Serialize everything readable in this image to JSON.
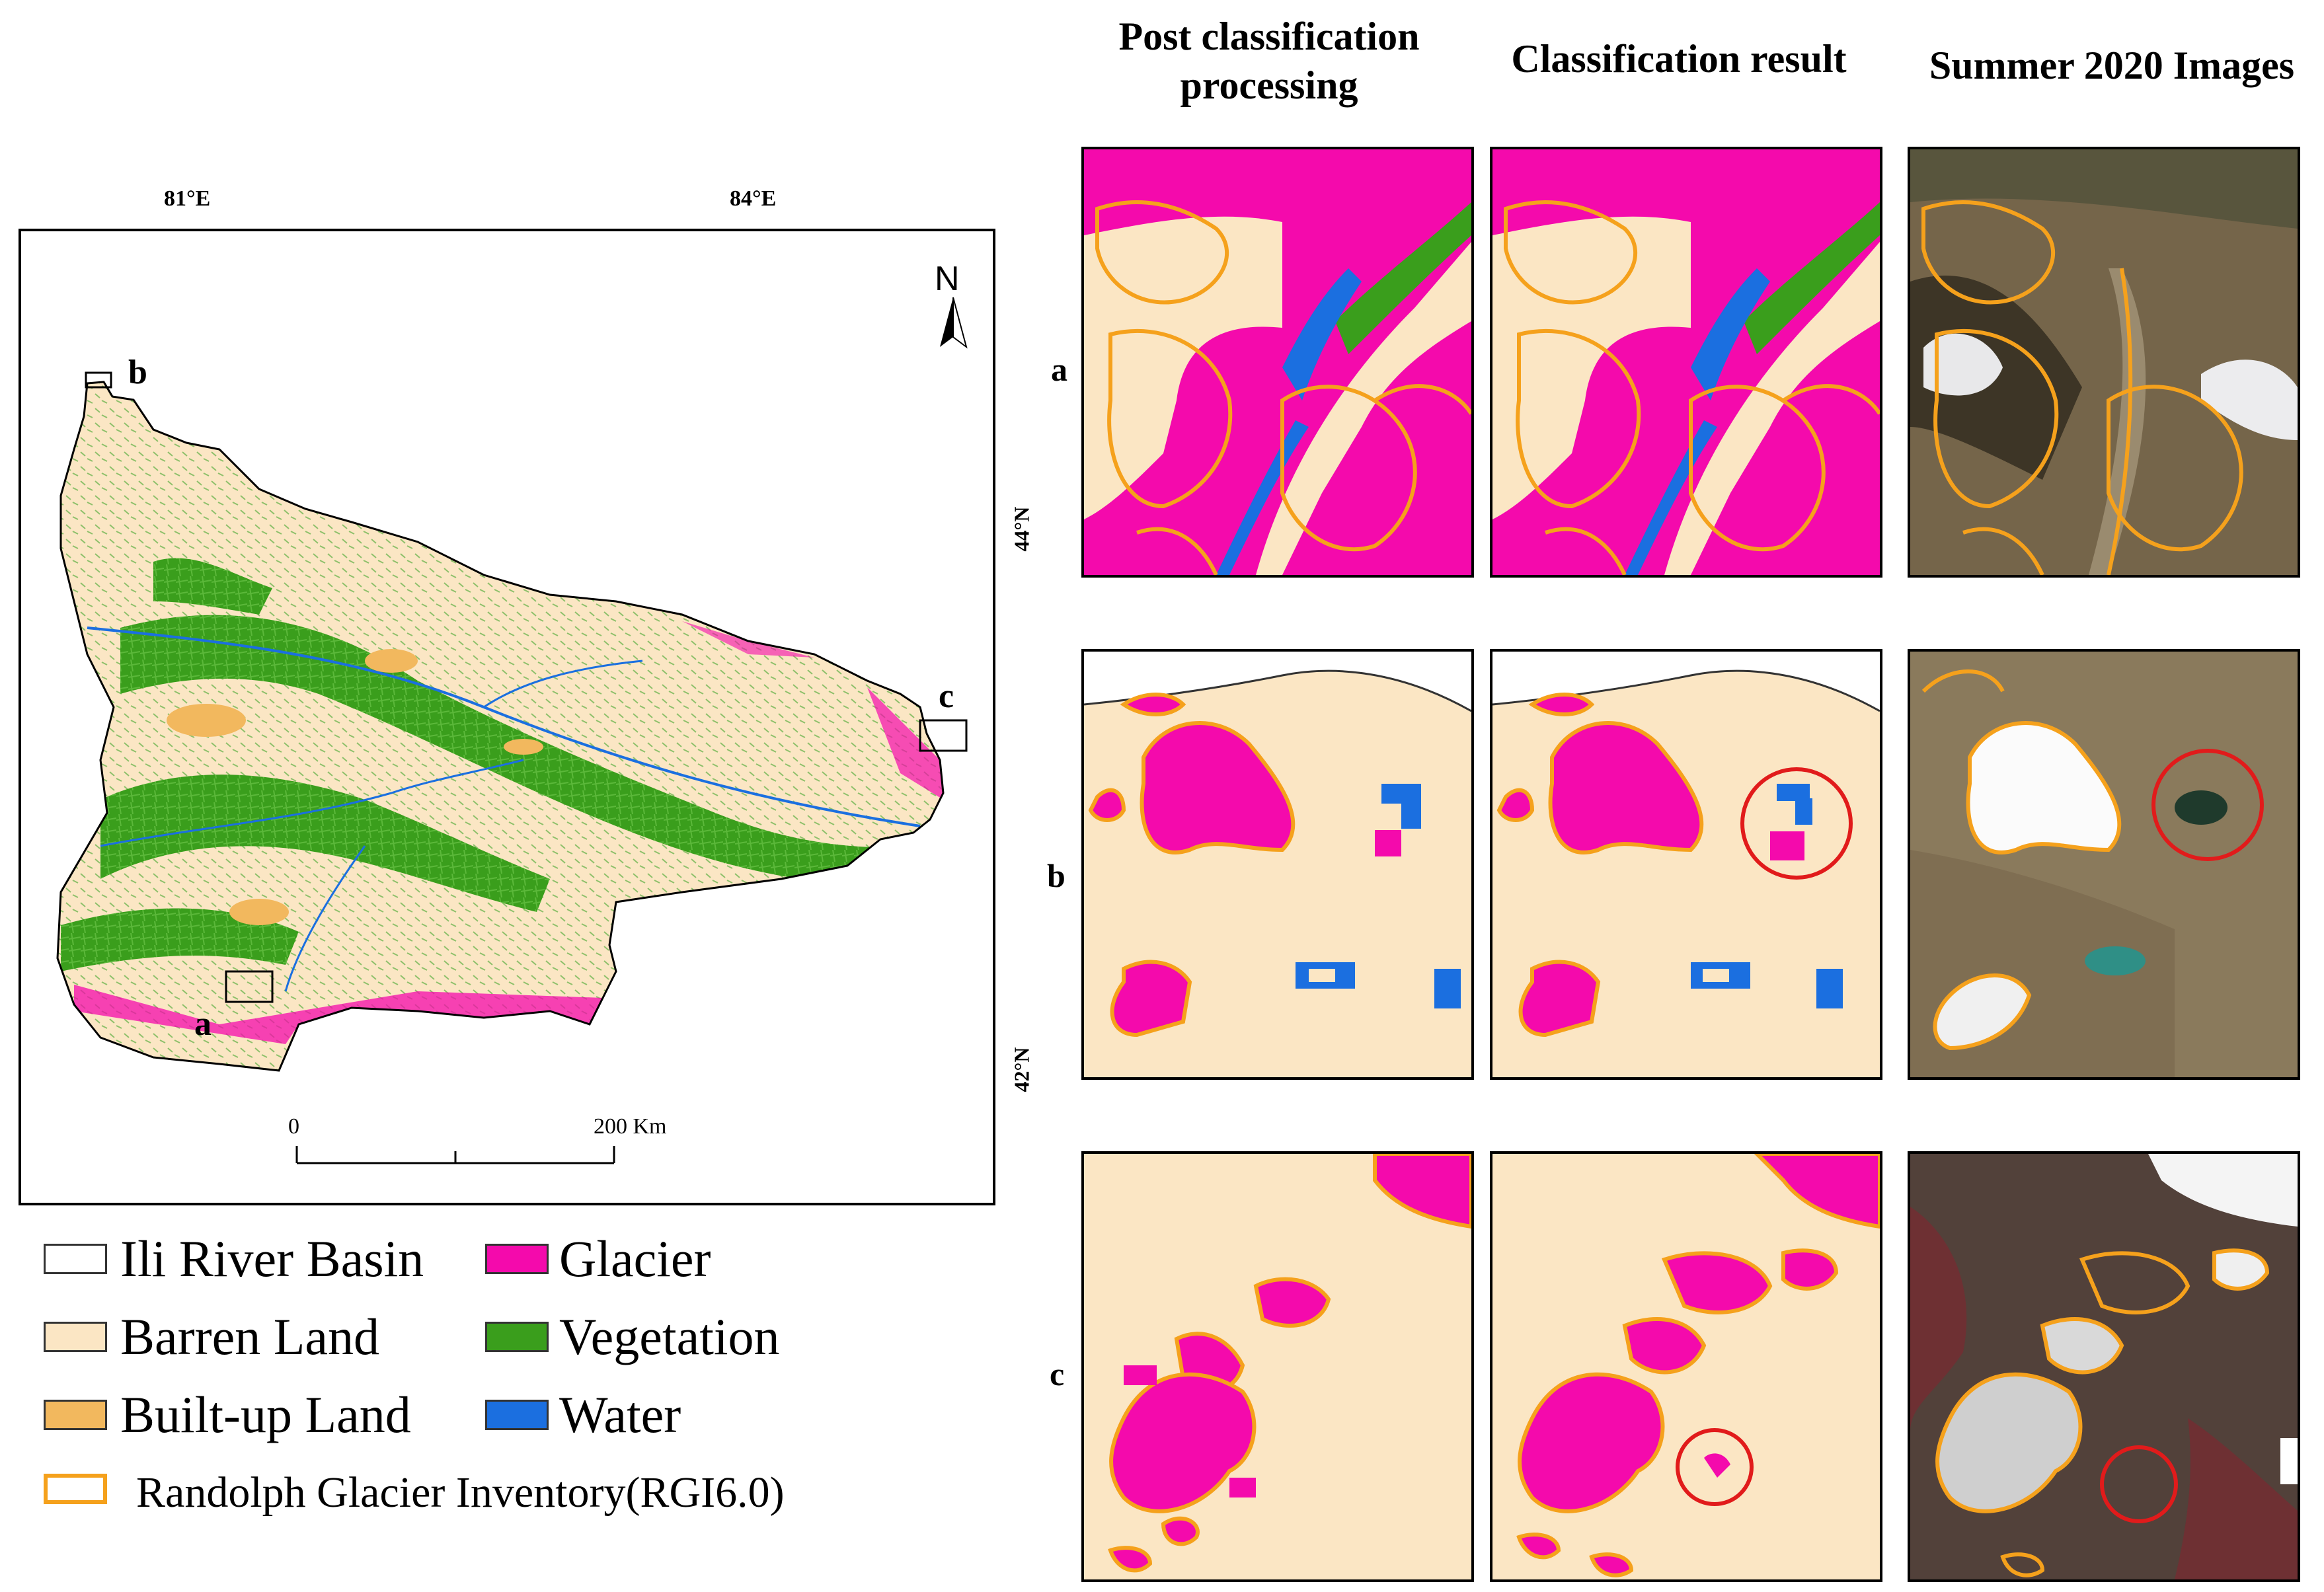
{
  "columns": {
    "post": "Post classification processing",
    "classified": "Classification result",
    "images": "Summer 2020 Images"
  },
  "map": {
    "lon_labels": [
      "81°E",
      "84°E"
    ],
    "lat_labels": [
      "44°N",
      "42°N"
    ],
    "north": "N",
    "site_labels": [
      "a",
      "b",
      "c"
    ],
    "scale": {
      "start": "0",
      "end": "200 Km"
    }
  },
  "rows": [
    "a",
    "b",
    "c"
  ],
  "legend": [
    {
      "label": "Ili River Basin",
      "color": "#ffffff"
    },
    {
      "label": "Glacier",
      "color": "#f40aac"
    },
    {
      "label": "Barren Land",
      "color": "#fbe6c4"
    },
    {
      "label": "Vegetation",
      "color": "#3a9e1c"
    },
    {
      "label": "Built-up Land",
      "color": "#f2b85e"
    },
    {
      "label": "Water",
      "color": "#1b6fe0"
    },
    {
      "label": "Randolph Glacier Inventory(RGI6.0)",
      "color": "#f5a11c"
    }
  ],
  "colors": {
    "glacier": "#f40aac",
    "barren": "#fbe6c4",
    "vegetation": "#3a9e1c",
    "builtup": "#f2b85e",
    "water": "#1b6fe0",
    "rgi": "#f5a11c",
    "highlight": "#e11b1b"
  }
}
